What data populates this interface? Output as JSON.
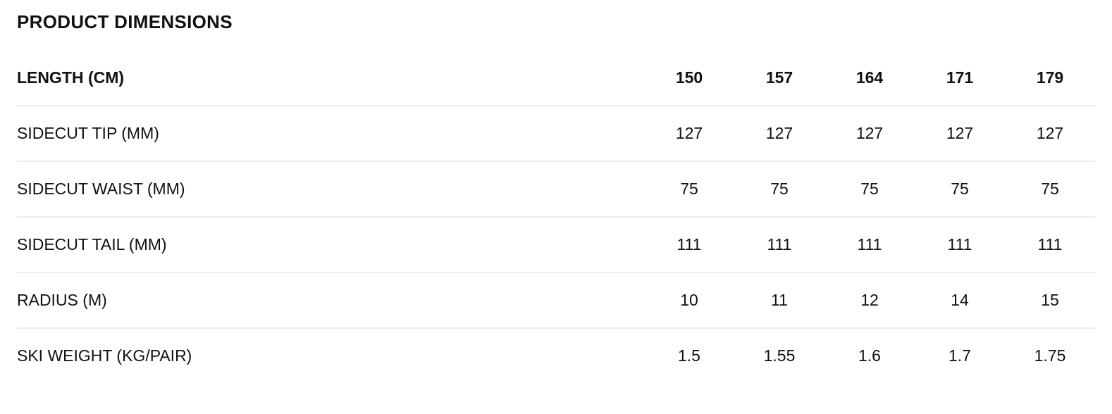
{
  "title": "PRODUCT DIMENSIONS",
  "header": {
    "label": "LENGTH (CM)",
    "values": [
      "150",
      "157",
      "164",
      "171",
      "179"
    ]
  },
  "rows": [
    {
      "label": "SIDECUT TIP (MM)",
      "values": [
        "127",
        "127",
        "127",
        "127",
        "127"
      ]
    },
    {
      "label": "SIDECUT WAIST (MM)",
      "values": [
        "75",
        "75",
        "75",
        "75",
        "75"
      ]
    },
    {
      "label": "SIDECUT TAIL (MM)",
      "values": [
        "111",
        "111",
        "111",
        "111",
        "111"
      ]
    },
    {
      "label": "RADIUS (M)",
      "values": [
        "10",
        "11",
        "12",
        "14",
        "15"
      ]
    },
    {
      "label": "SKI WEIGHT (KG/PAIR)",
      "values": [
        "1.5",
        "1.55",
        "1.6",
        "1.7",
        "1.75"
      ]
    }
  ]
}
